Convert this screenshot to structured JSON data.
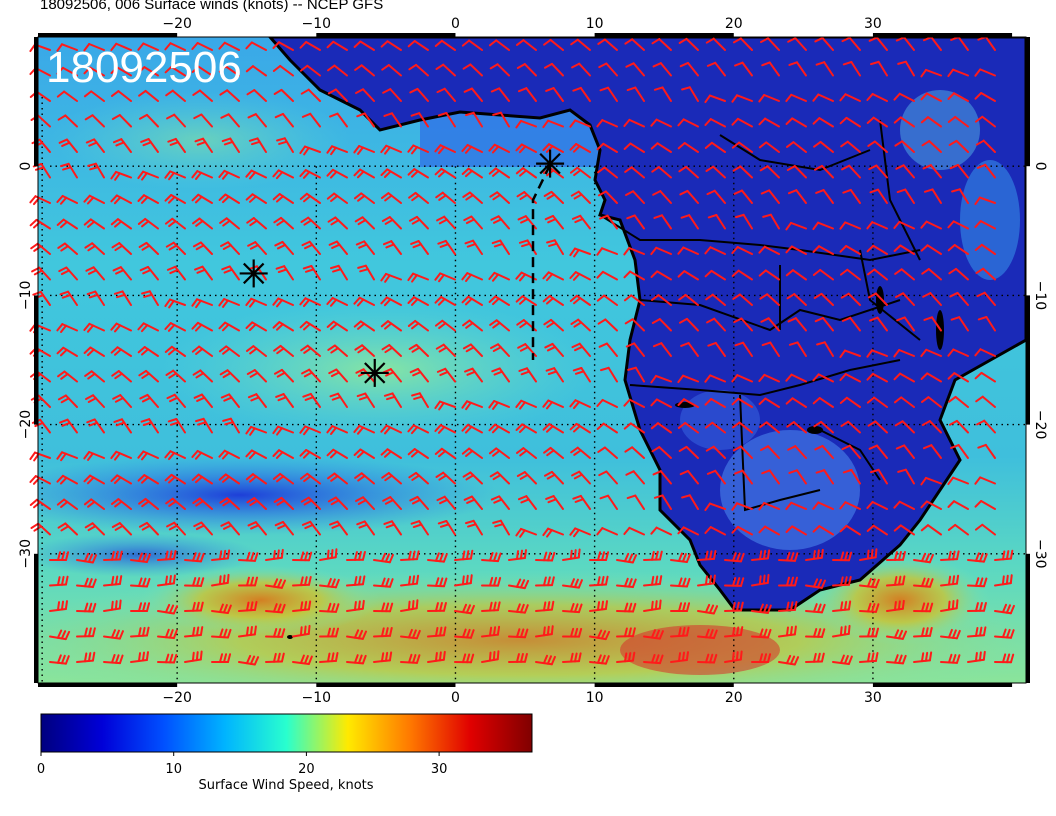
{
  "title": "18092506, 006 Surface winds (knots) -- NCEP GFS",
  "stamp": "18092506",
  "map": {
    "lon_range": [
      -30,
      41
    ],
    "lat_range": [
      -40,
      10
    ],
    "lon_ticks": [
      -20,
      -10,
      0,
      10,
      20,
      30
    ],
    "lat_ticks": [
      0,
      -10,
      -20,
      -30
    ],
    "lon_labels": [
      "−20",
      "−10",
      "0",
      "10",
      "20",
      "30"
    ],
    "lat_labels": [
      "0",
      "−10",
      "−20",
      "−30"
    ],
    "grid": true
  },
  "markers": [
    {
      "name": "asterisk-marker",
      "lon": 6.8,
      "lat": 0.2
    },
    {
      "name": "asterisk-marker",
      "lon": -14.5,
      "lat": -8.3
    },
    {
      "name": "asterisk-marker",
      "lon": -5.8,
      "lat": -16.0
    }
  ],
  "colorbar": {
    "label": "Surface Wind Speed, knots",
    "min": 0,
    "max": 37,
    "ticks": [
      0,
      10,
      20,
      30
    ],
    "tick_labels": [
      "0",
      "10",
      "20",
      "30"
    ],
    "colors": [
      "#00007f",
      "#0000d8",
      "#0050ff",
      "#00b4ff",
      "#29ffce",
      "#ffea00",
      "#ff7a00",
      "#e00000",
      "#800000"
    ]
  },
  "palette": {
    "ocean_mid": "#39b7d6",
    "ocean_high": "#c8c83a",
    "land": "#1d2fb0",
    "barb": "#ff1a1a",
    "coast": "#000000"
  }
}
